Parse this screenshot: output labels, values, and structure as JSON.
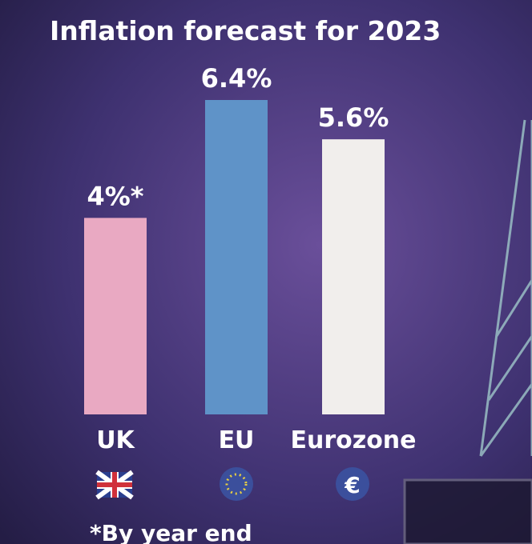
{
  "chart_data": {
    "type": "bar",
    "title": "Inflation forecast for 2023",
    "categories": [
      "UK",
      "EU",
      "Eurozone"
    ],
    "values": [
      4,
      6.4,
      5.6
    ],
    "value_labels": [
      "4%*",
      "6.4%",
      "5.6%"
    ],
    "colors": [
      "#e9a9c2",
      "#5f93c8",
      "#f1eeec"
    ],
    "footnote": "*By year end"
  }
}
